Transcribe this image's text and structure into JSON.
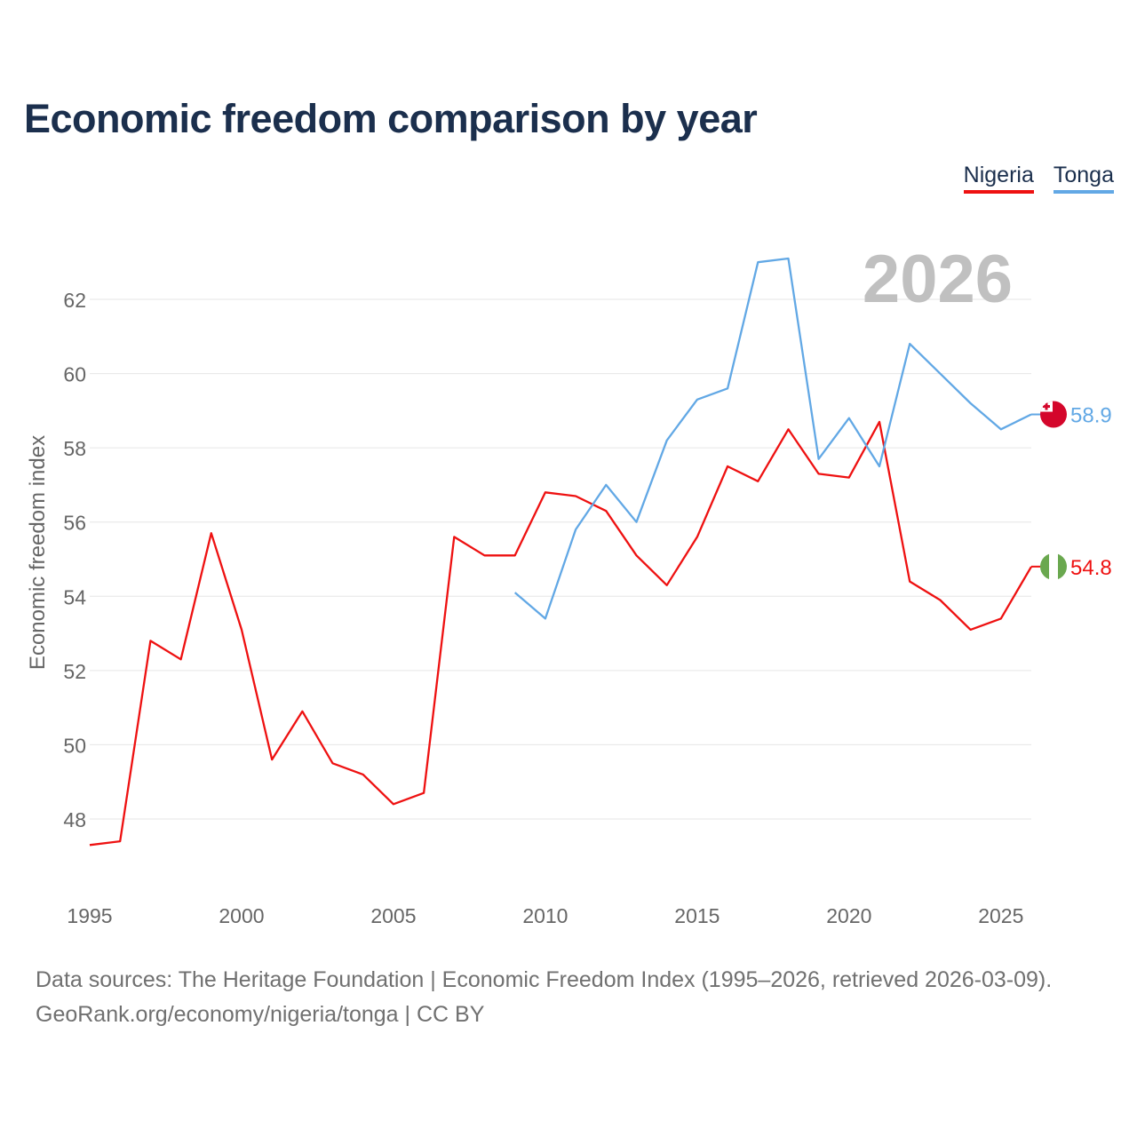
{
  "title": "Economic freedom comparison by year",
  "legend": {
    "nigeria": "Nigeria",
    "tonga": "Tonga"
  },
  "footer": {
    "line1": "Data sources: The Heritage Foundation | Economic Freedom Index (1995–2026, retrieved 2026-03-09).",
    "line2": "GeoRank.org/economy/nigeria/tonga | CC BY"
  },
  "colors": {
    "nigeria": "#ee1111",
    "tonga": "#62a8e5",
    "title": "#1b2f4d",
    "year_watermark": "#c0c0c0"
  },
  "chart_data": {
    "type": "line",
    "title": "Economic freedom comparison by year",
    "xlabel": "",
    "ylabel": "Economic freedom index",
    "year_watermark": "2026",
    "xlim": [
      1995,
      2026
    ],
    "ylim": [
      46,
      64
    ],
    "x_ticks": [
      1995,
      2000,
      2005,
      2010,
      2015,
      2020,
      2025
    ],
    "y_ticks": [
      48,
      50,
      52,
      54,
      56,
      58,
      60,
      62
    ],
    "grid": true,
    "legend_position": "top-right",
    "series": [
      {
        "name": "Nigeria",
        "color": "#ee1111",
        "end_label": "54.8",
        "flag_icon": "nigeria-flag-icon",
        "x": [
          1995,
          1996,
          1997,
          1998,
          1999,
          2000,
          2001,
          2002,
          2003,
          2004,
          2005,
          2006,
          2007,
          2008,
          2009,
          2010,
          2011,
          2012,
          2013,
          2014,
          2015,
          2016,
          2017,
          2018,
          2019,
          2020,
          2021,
          2022,
          2023,
          2024,
          2025,
          2026
        ],
        "values": [
          47.3,
          47.4,
          52.8,
          52.3,
          55.7,
          53.1,
          49.6,
          50.9,
          49.5,
          49.2,
          48.4,
          48.7,
          55.6,
          55.1,
          55.1,
          56.8,
          56.7,
          56.3,
          55.1,
          54.3,
          55.6,
          57.5,
          57.1,
          58.5,
          57.3,
          57.2,
          58.7,
          54.4,
          53.9,
          53.1,
          53.4,
          54.8
        ]
      },
      {
        "name": "Tonga",
        "color": "#62a8e5",
        "end_label": "58.9",
        "flag_icon": "tonga-flag-icon",
        "x": [
          2009,
          2010,
          2011,
          2012,
          2013,
          2014,
          2015,
          2016,
          2017,
          2018,
          2019,
          2020,
          2021,
          2022,
          2023,
          2024,
          2025,
          2026
        ],
        "values": [
          54.1,
          53.4,
          55.8,
          57.0,
          56.0,
          58.2,
          59.3,
          59.6,
          63.0,
          63.1,
          57.7,
          58.8,
          57.5,
          60.8,
          60.0,
          59.2,
          58.5,
          58.9
        ]
      }
    ]
  }
}
